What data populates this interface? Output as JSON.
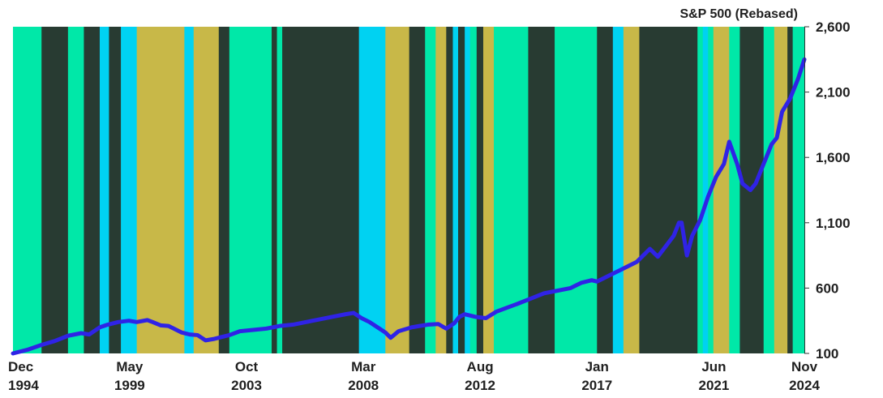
{
  "chart_data": {
    "type": "line",
    "title": "S&P 500 (Rebased)",
    "x_range": [
      1994.92,
      2024.84
    ],
    "ylim": [
      100,
      2600
    ],
    "y_ticks": [
      {
        "value": 100,
        "label": "100"
      },
      {
        "value": 600,
        "label": "600"
      },
      {
        "value": 1100,
        "label": "1,100"
      },
      {
        "value": 1600,
        "label": "1,600"
      },
      {
        "value": 2100,
        "label": "2,100"
      },
      {
        "value": 2600,
        "label": "2,600"
      }
    ],
    "x_ticks": [
      {
        "value": 1994.92,
        "line1": "Dec",
        "line2": "1994"
      },
      {
        "value": 1999.33,
        "line1": "May",
        "line2": "1999"
      },
      {
        "value": 2003.75,
        "line1": "Oct",
        "line2": "2003"
      },
      {
        "value": 2008.17,
        "line1": "Mar",
        "line2": "2008"
      },
      {
        "value": 2012.58,
        "line1": "Aug",
        "line2": "2012"
      },
      {
        "value": 2017.0,
        "line1": "Jan",
        "line2": "2017"
      },
      {
        "value": 2021.42,
        "line1": "Jun",
        "line2": "2021"
      },
      {
        "value": 2024.84,
        "line1": "Nov",
        "line2": "2024"
      }
    ],
    "colors": {
      "line": "#2f23e6",
      "regime_a": "#00e8a8",
      "regime_b": "#283b32",
      "regime_c": "#00d2f2",
      "regime_d": "#c8b848"
    },
    "regimes": [
      {
        "start": 1994.92,
        "end": 1996.0,
        "color": "regime_a"
      },
      {
        "start": 1996.0,
        "end": 1997.0,
        "color": "regime_b"
      },
      {
        "start": 1997.0,
        "end": 1997.6,
        "color": "regime_a"
      },
      {
        "start": 1997.6,
        "end": 1998.2,
        "color": "regime_b"
      },
      {
        "start": 1998.2,
        "end": 1998.55,
        "color": "regime_c"
      },
      {
        "start": 1998.55,
        "end": 1999.0,
        "color": "regime_b"
      },
      {
        "start": 1999.0,
        "end": 1999.6,
        "color": "regime_c"
      },
      {
        "start": 1999.6,
        "end": 2001.4,
        "color": "regime_d"
      },
      {
        "start": 2001.4,
        "end": 2001.75,
        "color": "regime_c"
      },
      {
        "start": 2001.75,
        "end": 2002.7,
        "color": "regime_d"
      },
      {
        "start": 2002.7,
        "end": 2003.1,
        "color": "regime_b"
      },
      {
        "start": 2003.1,
        "end": 2004.7,
        "color": "regime_a"
      },
      {
        "start": 2004.7,
        "end": 2004.9,
        "color": "regime_b"
      },
      {
        "start": 2004.9,
        "end": 2005.1,
        "color": "regime_a"
      },
      {
        "start": 2005.1,
        "end": 2008.0,
        "color": "regime_b"
      },
      {
        "start": 2008.0,
        "end": 2009.0,
        "color": "regime_c"
      },
      {
        "start": 2009.0,
        "end": 2009.9,
        "color": "regime_d"
      },
      {
        "start": 2009.9,
        "end": 2010.5,
        "color": "regime_b"
      },
      {
        "start": 2010.5,
        "end": 2010.9,
        "color": "regime_a"
      },
      {
        "start": 2010.9,
        "end": 2011.3,
        "color": "regime_d"
      },
      {
        "start": 2011.3,
        "end": 2011.55,
        "color": "regime_b"
      },
      {
        "start": 2011.55,
        "end": 2011.75,
        "color": "regime_c"
      },
      {
        "start": 2011.75,
        "end": 2012.0,
        "color": "regime_b"
      },
      {
        "start": 2012.0,
        "end": 2012.2,
        "color": "regime_c"
      },
      {
        "start": 2012.2,
        "end": 2012.45,
        "color": "regime_a"
      },
      {
        "start": 2012.45,
        "end": 2012.7,
        "color": "regime_b"
      },
      {
        "start": 2012.7,
        "end": 2013.1,
        "color": "regime_d"
      },
      {
        "start": 2013.1,
        "end": 2014.4,
        "color": "regime_a"
      },
      {
        "start": 2014.4,
        "end": 2015.4,
        "color": "regime_b"
      },
      {
        "start": 2015.4,
        "end": 2017.0,
        "color": "regime_a"
      },
      {
        "start": 2017.0,
        "end": 2017.6,
        "color": "regime_b"
      },
      {
        "start": 2017.6,
        "end": 2018.0,
        "color": "regime_c"
      },
      {
        "start": 2018.0,
        "end": 2018.6,
        "color": "regime_d"
      },
      {
        "start": 2018.6,
        "end": 2020.8,
        "color": "regime_b"
      },
      {
        "start": 2020.8,
        "end": 2021.0,
        "color": "regime_a"
      },
      {
        "start": 2021.0,
        "end": 2021.2,
        "color": "regime_c"
      },
      {
        "start": 2021.2,
        "end": 2021.4,
        "color": "regime_a"
      },
      {
        "start": 2021.4,
        "end": 2022.0,
        "color": "regime_d"
      },
      {
        "start": 2022.0,
        "end": 2022.4,
        "color": "regime_a"
      },
      {
        "start": 2022.4,
        "end": 2023.3,
        "color": "regime_b"
      },
      {
        "start": 2023.3,
        "end": 2023.7,
        "color": "regime_a"
      },
      {
        "start": 2023.7,
        "end": 2024.2,
        "color": "regime_d"
      },
      {
        "start": 2024.2,
        "end": 2024.4,
        "color": "regime_b"
      },
      {
        "start": 2024.4,
        "end": 2024.84,
        "color": "regime_a"
      }
    ],
    "series": [
      {
        "x": [
          1994.92,
          1995.5,
          1996.0,
          1996.5,
          1997.0,
          1997.5,
          1997.8,
          1998.2,
          1998.5,
          1998.7,
          1998.9,
          1999.3,
          1999.6,
          2000.0,
          2000.2,
          2000.5,
          2000.8,
          2001.0,
          2001.3,
          2001.6,
          2001.9,
          2002.2,
          2002.5,
          2002.8,
          2003.1,
          2003.5,
          2004.0,
          2004.5,
          2005.0,
          2005.5,
          2006.0,
          2006.5,
          2007.0,
          2007.5,
          2007.8,
          2008.1,
          2008.4,
          2008.7,
          2009.0,
          2009.2,
          2009.5,
          2010.0,
          2010.3,
          2010.6,
          2011.0,
          2011.3,
          2011.6,
          2011.8,
          2012.0,
          2012.4,
          2012.8,
          2013.2,
          2013.6,
          2014.0,
          2014.5,
          2015.0,
          2015.5,
          2016.0,
          2016.4,
          2016.8,
          2017.0,
          2017.5,
          2018.0,
          2018.5,
          2018.9,
          2019.0,
          2019.3,
          2019.6,
          2019.9,
          2020.1,
          2020.2,
          2020.4,
          2020.6,
          2020.9,
          2021.2,
          2021.5,
          2021.8,
          2022.0,
          2022.3,
          2022.5,
          2022.8,
          2023.0,
          2023.3,
          2023.6,
          2023.8,
          2024.0,
          2024.3,
          2024.6,
          2024.84
        ],
        "y": [
          100,
          130,
          165,
          195,
          235,
          255,
          245,
          300,
          320,
          330,
          340,
          350,
          340,
          355,
          340,
          315,
          310,
          290,
          260,
          245,
          240,
          200,
          210,
          225,
          240,
          270,
          280,
          290,
          310,
          320,
          340,
          360,
          380,
          400,
          410,
          370,
          340,
          300,
          260,
          220,
          270,
          300,
          310,
          320,
          325,
          290,
          330,
          380,
          400,
          380,
          370,
          420,
          450,
          480,
          520,
          560,
          580,
          600,
          640,
          660,
          650,
          700,
          750,
          800,
          880,
          900,
          840,
          920,
          1000,
          1100,
          1100,
          850,
          1000,
          1120,
          1300,
          1450,
          1550,
          1720,
          1550,
          1400,
          1350,
          1400,
          1550,
          1700,
          1750,
          1950,
          2050,
          2200,
          2350
        ]
      }
    ]
  }
}
